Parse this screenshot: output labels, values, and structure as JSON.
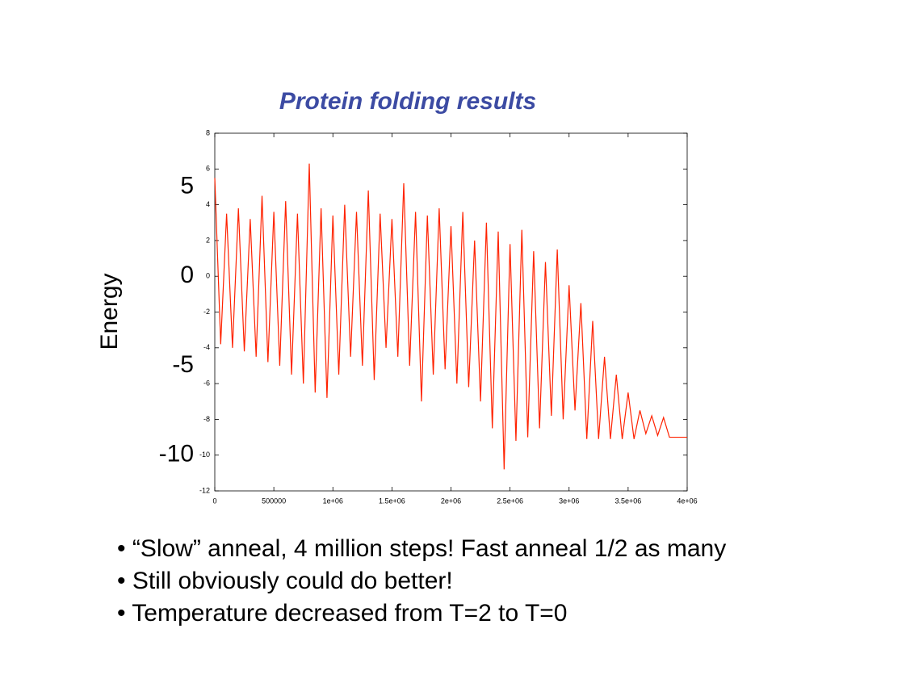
{
  "chart_data": {
    "type": "line",
    "title": "Protein folding results",
    "ylabel": "Energy",
    "x": [
      0,
      50000,
      100000,
      150000,
      200000,
      250000,
      300000,
      350000,
      400000,
      450000,
      500000,
      550000,
      600000,
      650000,
      700000,
      750000,
      800000,
      850000,
      900000,
      950000,
      1000000,
      1050000,
      1100000,
      1150000,
      1200000,
      1250000,
      1300000,
      1350000,
      1400000,
      1450000,
      1500000,
      1550000,
      1600000,
      1650000,
      1700000,
      1750000,
      1800000,
      1850000,
      1900000,
      1950000,
      2000000,
      2050000,
      2100000,
      2150000,
      2200000,
      2250000,
      2300000,
      2350000,
      2400000,
      2450000,
      2500000,
      2550000,
      2600000,
      2650000,
      2700000,
      2750000,
      2800000,
      2850000,
      2900000,
      2950000,
      3000000,
      3050000,
      3100000,
      3150000,
      3200000,
      3250000,
      3300000,
      3350000,
      3400000,
      3450000,
      3500000,
      3550000,
      3600000,
      3650000,
      3700000,
      3750000,
      3800000,
      3850000,
      4000000
    ],
    "series": [
      {
        "color": "#ff2200",
        "values": [
          5.5,
          -3.8,
          3.5,
          -4,
          3.8,
          -4.2,
          3.2,
          -4.5,
          4.5,
          -4.8,
          3.6,
          -5,
          4.2,
          -5.5,
          3.5,
          -6,
          6.3,
          -6.5,
          3.8,
          -6.8,
          3.4,
          -5.5,
          4.0,
          -4.5,
          3.6,
          -5,
          4.8,
          -5.8,
          3.5,
          -4,
          3.2,
          -4.5,
          5.2,
          -5,
          3.6,
          -7,
          3.4,
          -5.5,
          3.8,
          -5.2,
          2.8,
          -6,
          3.6,
          -6.2,
          2.0,
          -7,
          3.0,
          -8.5,
          2.5,
          -10.8,
          1.8,
          -9.2,
          2.6,
          -9,
          1.4,
          -8.5,
          0.8,
          -7.8,
          1.5,
          -8,
          -0.5,
          -7.5,
          -1.5,
          -9.1,
          -2.5,
          -9.1,
          -4.5,
          -9.1,
          -5.5,
          -9.1,
          -6.5,
          -9.1,
          -7.5,
          -8.8,
          -7.8,
          -8.9,
          -7.9,
          -9,
          -9
        ]
      }
    ],
    "xlim": [
      0,
      4000000
    ],
    "xticks": [
      0,
      500000,
      {
        "value": 1000000,
        "label": "1e+06"
      },
      {
        "value": 1500000,
        "label": "1.5e+06"
      },
      {
        "value": 2000000,
        "label": "2e+06"
      },
      {
        "value": 2500000,
        "label": "2.5e+06"
      },
      {
        "value": 3000000,
        "label": "3e+06"
      },
      {
        "value": 3500000,
        "label": "3.5e+06"
      },
      {
        "value": 4000000,
        "label": "4e+06"
      }
    ],
    "ylim": [
      -12,
      8
    ],
    "yticks": [
      -12,
      -10,
      -8,
      -6,
      -4,
      -2,
      0,
      2,
      4,
      6,
      8
    ],
    "large_yticks": [
      5,
      0,
      -5,
      -10
    ]
  },
  "bullets": [
    "• “Slow” anneal, 4 million steps! Fast anneal 1/2 as many",
    "• Still obviously could do better!",
    "• Temperature decreased from T=2 to T=0"
  ]
}
